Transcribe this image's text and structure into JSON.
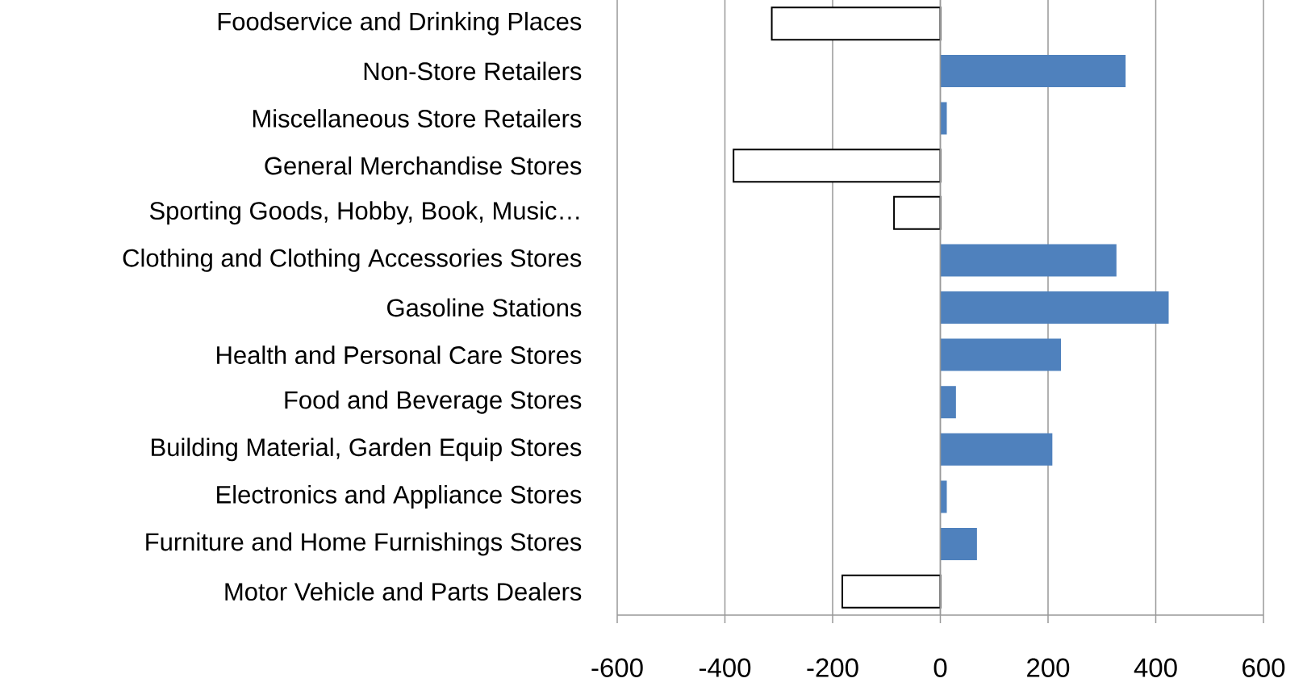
{
  "chart_data": {
    "type": "bar",
    "orientation": "horizontal",
    "categories": [
      "Foodservice and Drinking  Places",
      "Non-Store Retailers",
      "Miscellaneous Store Retailers",
      "General Merchandise Stores",
      "Sporting Goods, Hobby, Book, Music…",
      "Clothing and Clothing  Accessories Stores",
      "Gasoline Stations",
      "Health and Personal Care Stores",
      "Food and Beverage Stores",
      "Building Material, Garden Equip Stores",
      "Electronics and Appliance Stores",
      "Furniture and Home Furnishings Stores",
      "Motor Vehicle and Parts Dealers"
    ],
    "values": [
      -313,
      344,
      12,
      -384,
      -86,
      327,
      424,
      224,
      29,
      208,
      12,
      68,
      -182
    ],
    "colors": [
      "#ffffff",
      "#4f81bd",
      "#4f81bd",
      "#ffffff",
      "#ffffff",
      "#4f81bd",
      "#4f81bd",
      "#4f81bd",
      "#4f81bd",
      "#4f81bd",
      "#4f81bd",
      "#4f81bd",
      "#ffffff"
    ],
    "xlim": [
      -600,
      600
    ],
    "xticks": [
      -600,
      -400,
      -200,
      0,
      200,
      400,
      600
    ],
    "grid": "x"
  }
}
